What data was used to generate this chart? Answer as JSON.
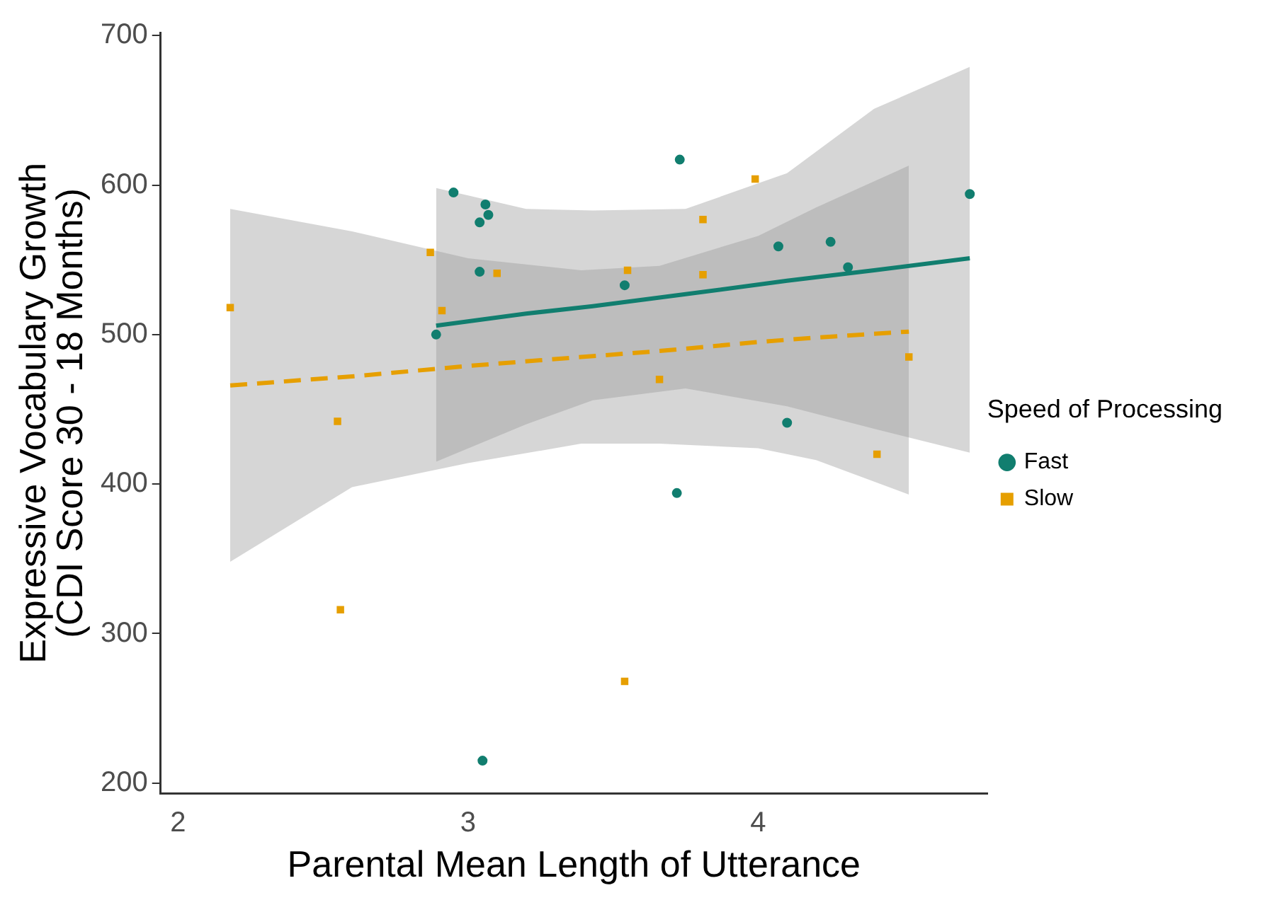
{
  "chart_data": {
    "type": "scatter",
    "xlabel": "Parental Mean Length of Utterance",
    "ylabel": "Expressive Vocabulary Growth\n(CDI Score 30 - 18 Months)",
    "legend_title": "Speed of Processing",
    "legend": "right",
    "grid": false,
    "xlim": [
      1.94,
      4.79
    ],
    "xticks": [
      2,
      3,
      4
    ],
    "ylim": [
      193,
      702
    ],
    "yticks": [
      200,
      300,
      400,
      500,
      600,
      700
    ],
    "series": [
      {
        "name": "Fast",
        "type": "scatter",
        "color": "#117e6f",
        "marker": "circle",
        "x": [
          2.95,
          3.73,
          4.73,
          3.06,
          3.07,
          3.04,
          3.04,
          2.89,
          3.54,
          4.07,
          4.25,
          4.31,
          4.1,
          3.72,
          3.05
        ],
        "values": [
          595,
          617,
          594,
          587,
          580,
          575,
          542,
          500,
          533,
          559,
          562,
          545,
          441,
          394,
          215
        ]
      },
      {
        "name": "Slow",
        "type": "scatter",
        "color": "#e69f00",
        "marker": "square",
        "x": [
          2.18,
          2.87,
          2.91,
          2.55,
          3.1,
          3.55,
          3.99,
          3.81,
          3.81,
          3.66,
          4.52,
          4.41,
          2.56,
          3.54
        ],
        "values": [
          518,
          555,
          516,
          442,
          541,
          543,
          604,
          577,
          540,
          470,
          485,
          420,
          316,
          268
        ]
      },
      {
        "type": "line",
        "color": "#117e6f",
        "line_style": "solid",
        "x": [
          2.89,
          3.2,
          3.43,
          3.75,
          4.1,
          4.4,
          4.73
        ],
        "values": [
          506,
          514,
          519,
          527,
          536,
          543,
          551
        ],
        "lower": [
          415,
          440,
          456,
          464,
          452,
          437,
          421
        ],
        "upper": [
          598,
          584,
          583,
          584,
          608,
          651,
          679
        ]
      },
      {
        "type": "line",
        "color": "#e69f00",
        "line_style": "dashed",
        "x": [
          2.18,
          2.6,
          3.0,
          3.39,
          3.66,
          4.0,
          4.2,
          4.52
        ],
        "values": [
          466,
          472,
          479,
          485,
          489,
          495,
          498,
          502
        ],
        "lower": [
          348,
          398,
          414,
          427,
          427,
          424,
          416,
          393
        ],
        "upper": [
          584,
          569,
          551,
          543,
          546,
          566,
          585,
          613
        ]
      }
    ]
  }
}
